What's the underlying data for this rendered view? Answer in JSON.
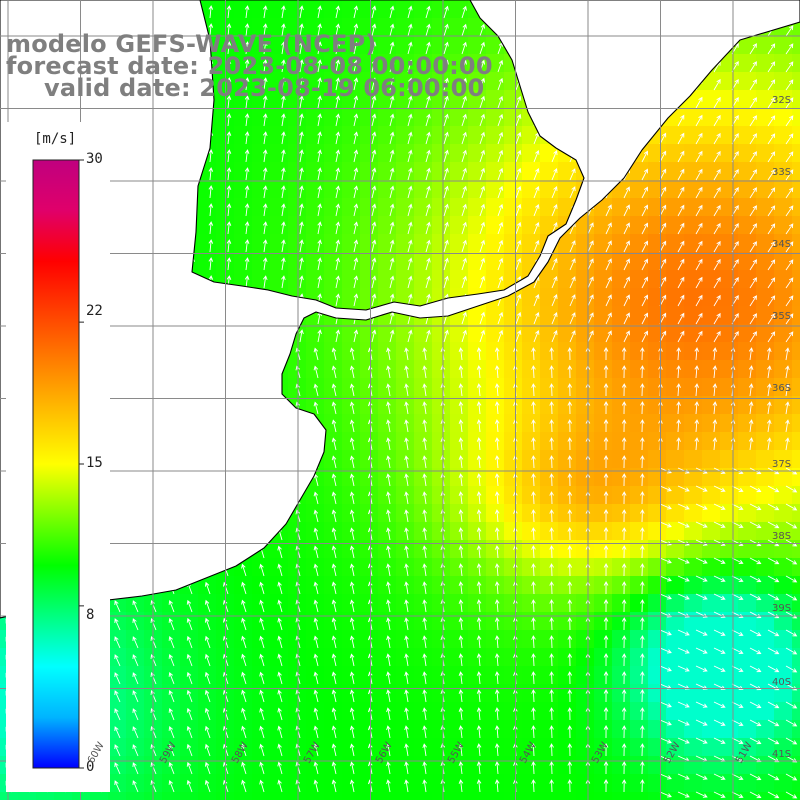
{
  "title": {
    "line1": "modelo GEFS-WAVE (NCEP)",
    "line2": "forecast date: 2023-08-08 00:00:00",
    "line3": "valid date: 2023-08-19 06:00:00"
  },
  "colorbar": {
    "unit": "[m/s]",
    "ticks": [
      "30",
      "22",
      "15",
      "8",
      "0"
    ],
    "tick_values": [
      30,
      22,
      15,
      8,
      0
    ],
    "min": 0,
    "max": 30,
    "colors": [
      "#0000ff",
      "#00b4ff",
      "#00ffff",
      "#00ff80",
      "#00ff00",
      "#80ff00",
      "#ffff00",
      "#ffc000",
      "#ff8000",
      "#ff4000",
      "#ff0000",
      "#e0006a",
      "#c0007f"
    ]
  },
  "lat_labels": [
    "32S",
    "33S",
    "34S",
    "35S",
    "36S",
    "37S",
    "38S",
    "39S",
    "40S",
    "41S"
  ],
  "lon_labels": [
    "60W",
    "59W",
    "58W",
    "57W",
    "56W",
    "55W",
    "54W",
    "53W",
    "52W",
    "51W"
  ],
  "map": {
    "region": "Rio de la Plata / South Atlantic",
    "variable": "wind speed",
    "vector_field": "wind direction arrows",
    "land_color": "#ffffff",
    "coast_color": "#000000",
    "grid_color": "#808080"
  }
}
